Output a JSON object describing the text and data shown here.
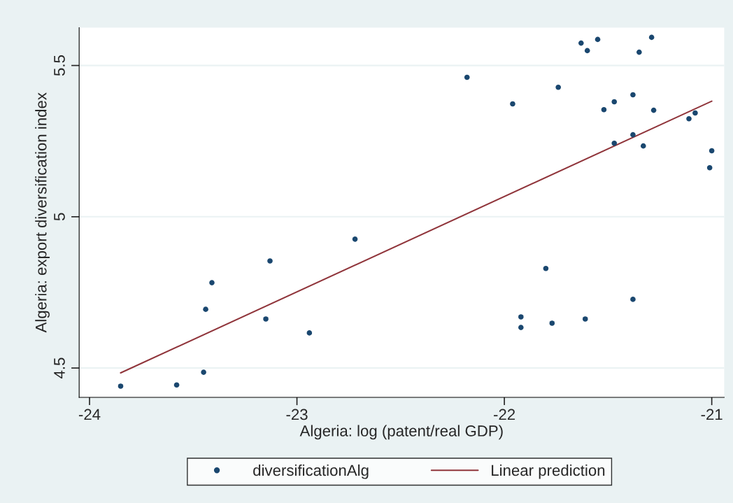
{
  "chart_data": {
    "type": "scatter",
    "xlabel": "Algeria: log (patent/real GDP)",
    "ylabel": "Algeria: export diversification index",
    "xlim": [
      -24.05,
      -20.94
    ],
    "ylim": [
      4.403,
      5.625
    ],
    "xticks": [
      -24,
      -23,
      -22,
      -21
    ],
    "yticks": [
      4.5,
      5,
      5.5
    ],
    "grid": "y",
    "legend": "bottom",
    "series": [
      {
        "name": "diversificationAlg",
        "marker": "circle",
        "color": "#1a476f",
        "x": [
          -23.85,
          -23.58,
          -23.45,
          -23.44,
          -23.41,
          -23.15,
          -23.13,
          -22.94,
          -22.72,
          -22.18,
          -21.96,
          -21.92,
          -21.92,
          -21.8,
          -21.77,
          -21.74,
          -21.63,
          -21.61,
          -21.6,
          -21.55,
          -21.52,
          -21.47,
          -21.47,
          -21.38,
          -21.38,
          -21.38,
          -21.35,
          -21.33,
          -21.29,
          -21.28,
          -21.11,
          -21.08,
          -21.0,
          -21.01
        ],
        "values": [
          4.44,
          4.444,
          4.486,
          4.694,
          4.782,
          4.662,
          4.854,
          4.616,
          4.926,
          5.461,
          5.373,
          4.669,
          4.634,
          4.829,
          4.648,
          5.428,
          5.574,
          4.662,
          5.549,
          5.586,
          5.354,
          5.38,
          5.243,
          5.403,
          5.271,
          4.727,
          5.544,
          5.234,
          5.593,
          5.352,
          5.324,
          5.343,
          5.218,
          5.162
        ]
      },
      {
        "name": "Linear prediction",
        "type": "line",
        "color": "#90353b",
        "x": [
          -23.85,
          -21.0
        ],
        "values": [
          4.484,
          5.382
        ]
      }
    ]
  }
}
